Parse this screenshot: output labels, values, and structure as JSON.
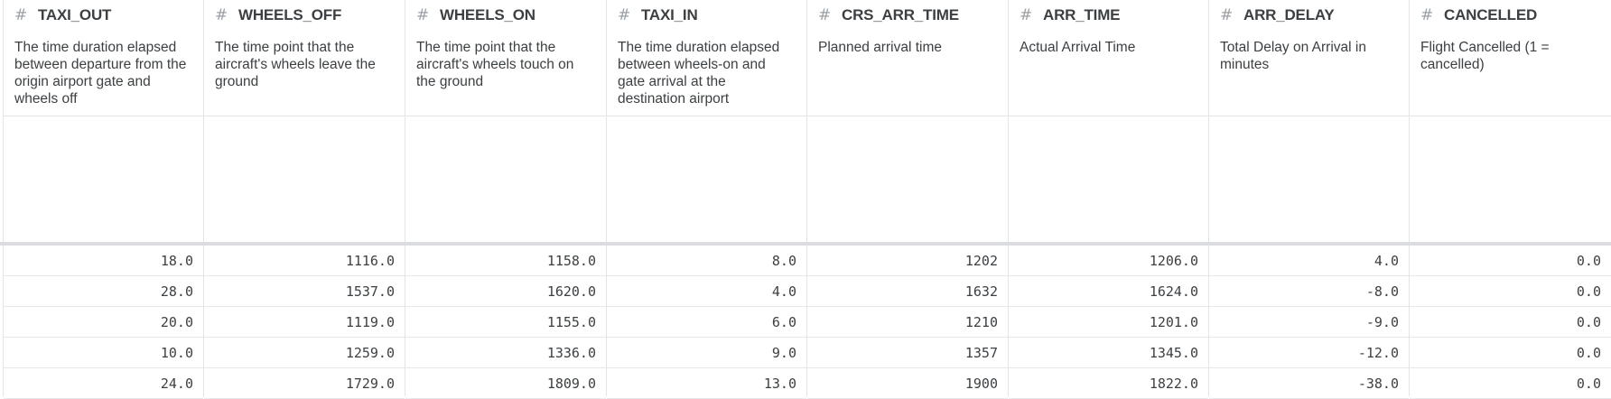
{
  "columns": [
    {
      "name": "TAXI_OUT",
      "icon": "hash-icon",
      "description": "The time duration elapsed between departure from the origin airport gate and wheels off",
      "values": [
        "18.0",
        "28.0",
        "20.0",
        "10.0",
        "24.0"
      ]
    },
    {
      "name": "WHEELS_OFF",
      "icon": "hash-icon",
      "description": "The time point that the aircraft's wheels leave the ground",
      "values": [
        "1116.0",
        "1537.0",
        "1119.0",
        "1259.0",
        "1729.0"
      ]
    },
    {
      "name": "WHEELS_ON",
      "icon": "hash-icon",
      "description": "The time point that the aircraft's wheels touch on the ground",
      "values": [
        "1158.0",
        "1620.0",
        "1155.0",
        "1336.0",
        "1809.0"
      ]
    },
    {
      "name": "TAXI_IN",
      "icon": "hash-icon",
      "description": "The time duration elapsed between wheels-on and gate arrival at the destination airport",
      "values": [
        "8.0",
        "4.0",
        "6.0",
        "9.0",
        "13.0"
      ]
    },
    {
      "name": "CRS_ARR_TIME",
      "icon": "hash-icon",
      "description": "Planned arrival time",
      "values": [
        "1202",
        "1632",
        "1210",
        "1357",
        "1900"
      ]
    },
    {
      "name": "ARR_TIME",
      "icon": "hash-icon",
      "description": "Actual Arrival Time",
      "values": [
        "1206.0",
        "1624.0",
        "1201.0",
        "1345.0",
        "1822.0"
      ]
    },
    {
      "name": "ARR_DELAY",
      "icon": "hash-icon",
      "description": "Total Delay on Arrival in minutes",
      "values": [
        "4.0",
        "-8.0",
        "-9.0",
        "-12.0",
        "-38.0"
      ]
    },
    {
      "name": "CANCELLED",
      "icon": "hash-icon",
      "description": "Flight Cancelled (1 = cancelled)",
      "values": [
        "0.0",
        "0.0",
        "0.0",
        "0.0",
        "0.0"
      ]
    }
  ],
  "hash_glyph": "#"
}
